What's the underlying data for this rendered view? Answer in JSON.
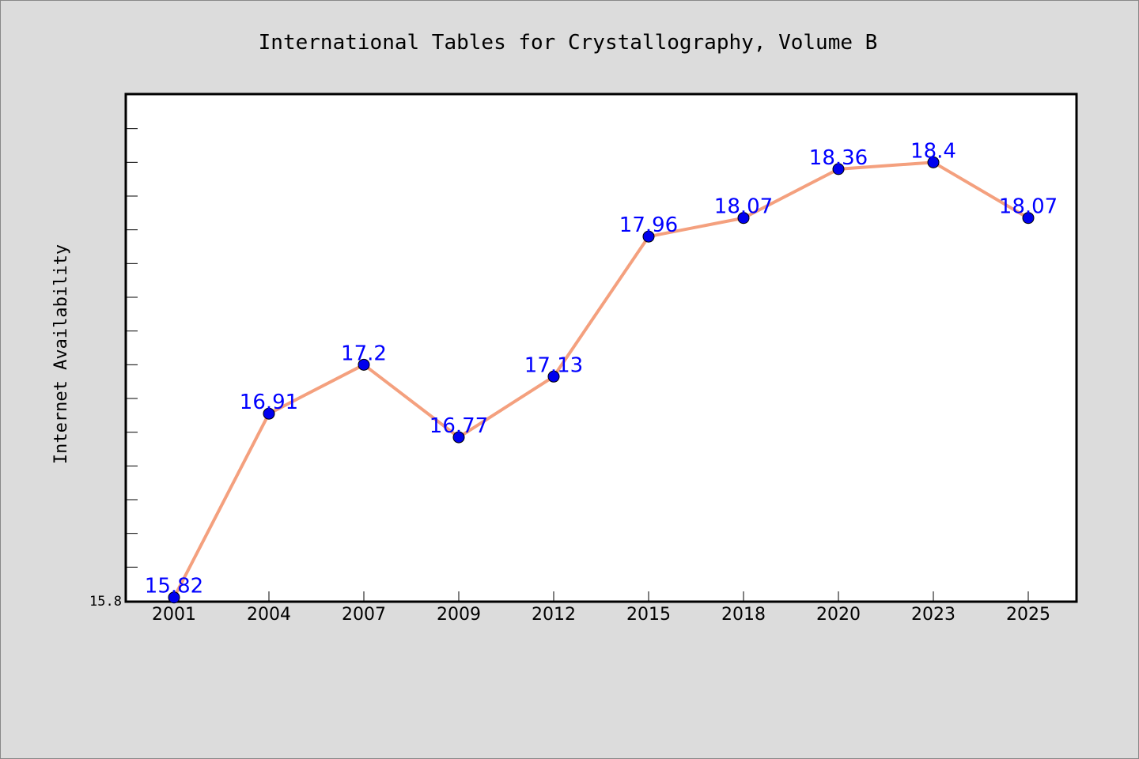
{
  "chart_data": {
    "type": "line",
    "title": "International Tables for Crystallography, Volume B",
    "xlabel": "",
    "ylabel": "Internet Availability",
    "categories": [
      "2001",
      "2004",
      "2007",
      "2009",
      "2012",
      "2015",
      "2018",
      "2020",
      "2023",
      "2025"
    ],
    "series": [
      {
        "values": [
          15.82,
          16.91,
          17.2,
          16.77,
          17.13,
          17.96,
          18.07,
          18.36,
          18.4,
          18.07
        ],
        "labels": [
          "15.82",
          "16.91",
          "17.2",
          "16.77",
          "17.13",
          "17.96",
          "18.07",
          "18.36",
          "18.4",
          "18.07"
        ]
      }
    ],
    "ylim": [
      15.8,
      18.8
    ],
    "yticks": [
      {
        "value": 15.8,
        "label": "15.8"
      }
    ],
    "y_minor_tick_step": 0.2,
    "grid": false,
    "colors": {
      "line": "#f4a07e",
      "marker": "#0000ee",
      "data_label": "#0000ff",
      "plot_bg": "#ffffff",
      "figure_bg": "#dcdcdc"
    }
  }
}
